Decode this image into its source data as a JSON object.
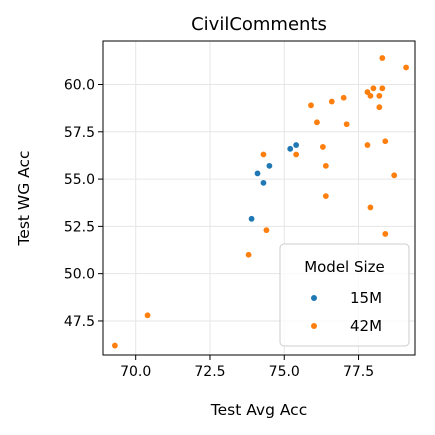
{
  "chart_data": {
    "type": "scatter",
    "title": "CivilComments",
    "xlabel": "Test Avg Acc",
    "ylabel": "Test WG Acc",
    "xlim": [
      68.9,
      79.4
    ],
    "ylim": [
      45.7,
      62.3
    ],
    "xticks": [
      70.0,
      72.5,
      75.0,
      77.5
    ],
    "xtick_labels": [
      "70.0",
      "72.5",
      "75.0",
      "77.5"
    ],
    "yticks": [
      47.5,
      50.0,
      52.5,
      55.0,
      57.5,
      60.0
    ],
    "ytick_labels": [
      "47.5",
      "50.0",
      "52.5",
      "55.0",
      "57.5",
      "60.0"
    ],
    "grid": true,
    "legend": {
      "title": "Model Size",
      "placement": "lower-right"
    },
    "series": [
      {
        "name": "15M",
        "color": "#1f77b4",
        "points": [
          {
            "x": 73.9,
            "y": 52.9
          },
          {
            "x": 74.1,
            "y": 55.3
          },
          {
            "x": 74.3,
            "y": 54.8
          },
          {
            "x": 74.5,
            "y": 55.7
          },
          {
            "x": 75.2,
            "y": 56.6
          },
          {
            "x": 75.4,
            "y": 56.8
          }
        ]
      },
      {
        "name": "42M",
        "color": "#ff7f0e",
        "points": [
          {
            "x": 69.3,
            "y": 46.2
          },
          {
            "x": 70.4,
            "y": 47.8
          },
          {
            "x": 73.8,
            "y": 51.0
          },
          {
            "x": 74.4,
            "y": 52.3
          },
          {
            "x": 74.3,
            "y": 56.3
          },
          {
            "x": 75.4,
            "y": 56.3
          },
          {
            "x": 75.9,
            "y": 58.9
          },
          {
            "x": 76.1,
            "y": 58.0
          },
          {
            "x": 76.3,
            "y": 56.7
          },
          {
            "x": 76.4,
            "y": 55.7
          },
          {
            "x": 76.4,
            "y": 54.1
          },
          {
            "x": 76.6,
            "y": 59.1
          },
          {
            "x": 77.0,
            "y": 59.3
          },
          {
            "x": 77.1,
            "y": 57.9
          },
          {
            "x": 77.8,
            "y": 59.6
          },
          {
            "x": 77.8,
            "y": 56.8
          },
          {
            "x": 77.9,
            "y": 59.4
          },
          {
            "x": 77.9,
            "y": 53.5
          },
          {
            "x": 78.0,
            "y": 59.8
          },
          {
            "x": 78.2,
            "y": 59.4
          },
          {
            "x": 78.2,
            "y": 58.8
          },
          {
            "x": 78.3,
            "y": 59.8
          },
          {
            "x": 78.3,
            "y": 61.4
          },
          {
            "x": 78.4,
            "y": 57.0
          },
          {
            "x": 78.4,
            "y": 52.1
          },
          {
            "x": 78.7,
            "y": 55.2
          },
          {
            "x": 79.1,
            "y": 60.9
          }
        ]
      }
    ]
  }
}
